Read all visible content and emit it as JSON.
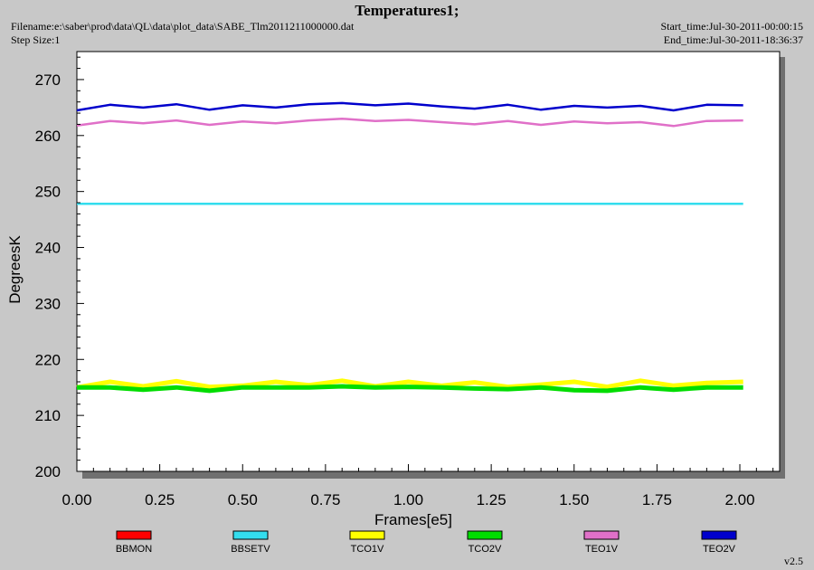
{
  "header": {
    "title": "Temperatures1;",
    "filename": "Filename:e:\\saber\\prod\\data\\QL\\data\\plot_data\\SABE_Tlm2011211000000.dat",
    "step_size": "Step Size:1",
    "start_time": "Start_time:Jul-30-2011-00:00:15",
    "end_time": "End_time:Jul-30-2011-18:36:37"
  },
  "version": "v2.5",
  "colors": {
    "background": "#c8c8c8",
    "plot_bg": "#ffffff",
    "BBMON": "#ff0000",
    "BBSETV": "#33ddee",
    "TCO1V": "#ffff00",
    "TCO2V": "#00dd00",
    "TEO1V": "#e070c8",
    "TEO2V": "#0000cc"
  },
  "chart_data": {
    "type": "line",
    "title": "Temperatures1;",
    "xlabel": "Frames[e5]",
    "ylabel": "DegreesK",
    "xlim": [
      0.0,
      2.12
    ],
    "ylim": [
      200,
      275
    ],
    "x_ticks": [
      0.0,
      0.25,
      0.5,
      0.75,
      1.0,
      1.25,
      1.5,
      1.75,
      2.0
    ],
    "x_tick_labels": [
      "0.00",
      "0.25",
      "0.50",
      "0.75",
      "1.00",
      "1.25",
      "1.50",
      "1.75",
      "2.00"
    ],
    "y_ticks": [
      200,
      210,
      220,
      230,
      240,
      250,
      260,
      270
    ],
    "y_tick_labels": [
      "200",
      "210",
      "220",
      "230",
      "240",
      "250",
      "260",
      "270"
    ],
    "grid": false,
    "legend_position": "bottom",
    "series": [
      {
        "name": "BBMON",
        "x": [],
        "y": []
      },
      {
        "name": "BBSETV",
        "x": [
          0.0,
          0.25,
          0.5,
          0.75,
          1.0,
          1.25,
          1.5,
          1.75,
          2.01
        ],
        "y": [
          247.8,
          247.8,
          247.8,
          247.8,
          247.8,
          247.8,
          247.8,
          247.8,
          247.8
        ]
      },
      {
        "name": "TCO1V",
        "x": [
          0.0,
          0.1,
          0.2,
          0.3,
          0.4,
          0.5,
          0.6,
          0.7,
          0.8,
          0.9,
          1.0,
          1.1,
          1.2,
          1.3,
          1.4,
          1.5,
          1.6,
          1.7,
          1.8,
          1.9,
          2.01
        ],
        "y": [
          215.0,
          216.0,
          215.2,
          216.1,
          215.1,
          215.3,
          216.0,
          215.4,
          216.2,
          215.2,
          216.0,
          215.3,
          215.9,
          215.1,
          215.5,
          216.0,
          215.1,
          216.2,
          215.3,
          215.8,
          216.0
        ]
      },
      {
        "name": "TCO2V",
        "x": [
          0.0,
          0.1,
          0.2,
          0.3,
          0.4,
          0.5,
          0.6,
          0.7,
          0.8,
          0.9,
          1.0,
          1.1,
          1.2,
          1.3,
          1.4,
          1.5,
          1.6,
          1.7,
          1.8,
          1.9,
          2.01
        ],
        "y": [
          215.0,
          215.0,
          214.6,
          215.0,
          214.4,
          215.0,
          215.0,
          215.0,
          215.2,
          215.0,
          215.1,
          215.0,
          214.8,
          214.7,
          215.0,
          214.5,
          214.4,
          215.0,
          214.6,
          215.0,
          215.0
        ]
      },
      {
        "name": "TEO1V",
        "x": [
          0.0,
          0.1,
          0.2,
          0.3,
          0.4,
          0.5,
          0.6,
          0.7,
          0.8,
          0.9,
          1.0,
          1.1,
          1.2,
          1.3,
          1.4,
          1.5,
          1.6,
          1.7,
          1.8,
          1.9,
          2.01
        ],
        "y": [
          261.8,
          262.6,
          262.2,
          262.7,
          261.9,
          262.5,
          262.2,
          262.7,
          263.0,
          262.6,
          262.8,
          262.4,
          262.0,
          262.6,
          261.9,
          262.5,
          262.2,
          262.4,
          261.7,
          262.6,
          262.7
        ]
      },
      {
        "name": "TEO2V",
        "x": [
          0.0,
          0.1,
          0.2,
          0.3,
          0.4,
          0.5,
          0.6,
          0.7,
          0.8,
          0.9,
          1.0,
          1.1,
          1.2,
          1.3,
          1.4,
          1.5,
          1.6,
          1.7,
          1.8,
          1.9,
          2.01
        ],
        "y": [
          264.5,
          265.5,
          265.0,
          265.6,
          264.6,
          265.4,
          265.0,
          265.6,
          265.8,
          265.4,
          265.7,
          265.2,
          264.8,
          265.5,
          264.6,
          265.3,
          265.0,
          265.3,
          264.5,
          265.5,
          265.4
        ]
      }
    ]
  }
}
